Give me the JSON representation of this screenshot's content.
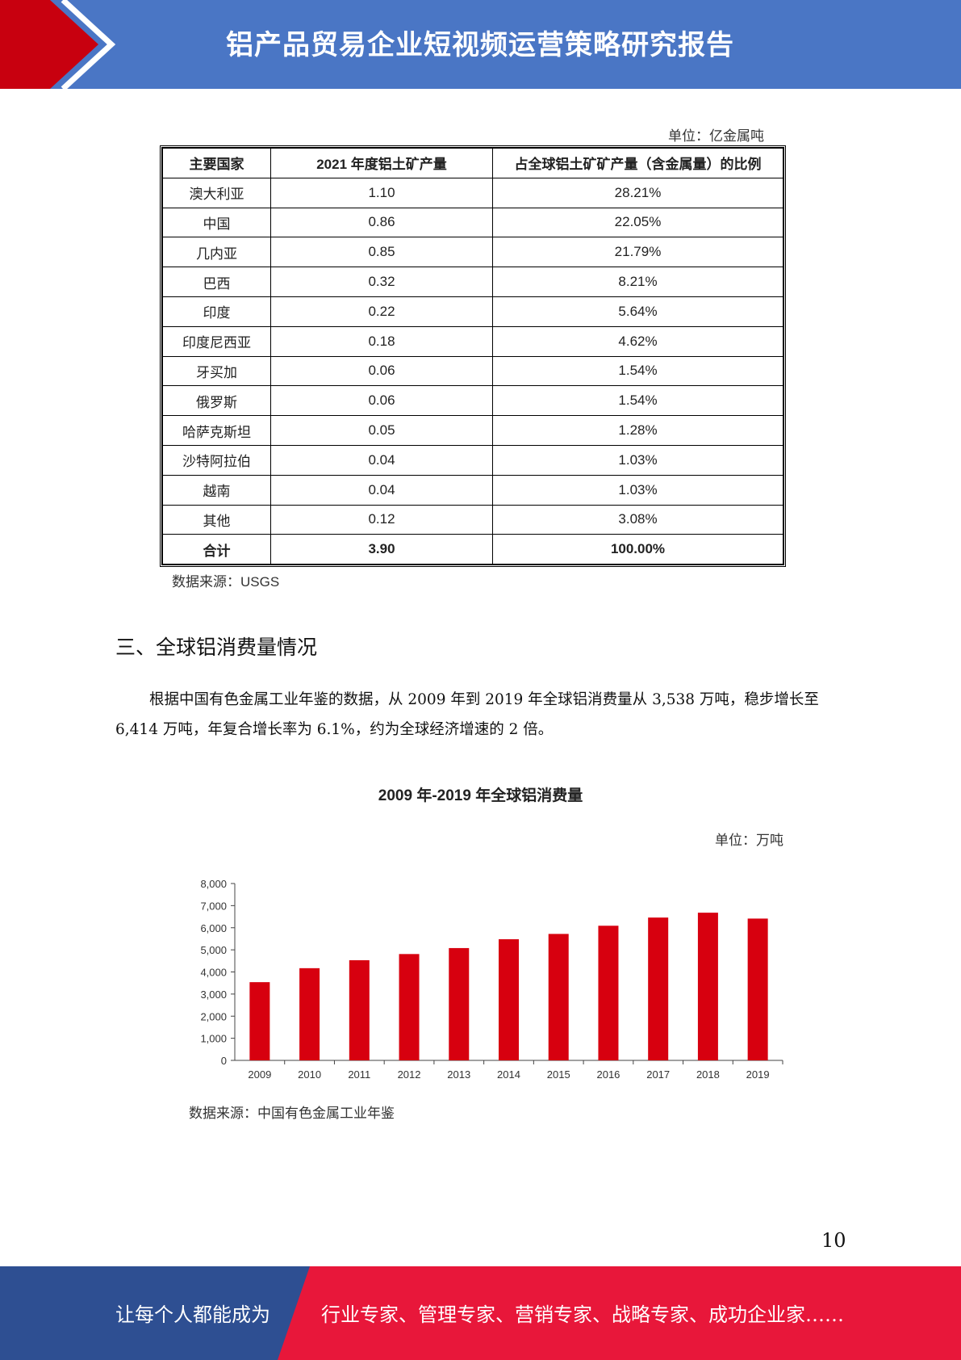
{
  "header": {
    "title": "铝产品贸易企业短视频运营策略研究报告"
  },
  "table": {
    "unit": "单位：亿金属吨",
    "headers": [
      "主要国家",
      "2021 年度铝土矿产量",
      "占全球铝土矿矿产量（含金属量）的比例"
    ],
    "rows": [
      [
        "澳大利亚",
        "1.10",
        "28.21%"
      ],
      [
        "中国",
        "0.86",
        "22.05%"
      ],
      [
        "几内亚",
        "0.85",
        "21.79%"
      ],
      [
        "巴西",
        "0.32",
        "8.21%"
      ],
      [
        "印度",
        "0.22",
        "5.64%"
      ],
      [
        "印度尼西亚",
        "0.18",
        "4.62%"
      ],
      [
        "牙买加",
        "0.06",
        "1.54%"
      ],
      [
        "俄罗斯",
        "0.06",
        "1.54%"
      ],
      [
        "哈萨克斯坦",
        "0.05",
        "1.28%"
      ],
      [
        "沙特阿拉伯",
        "0.04",
        "1.03%"
      ],
      [
        "越南",
        "0.04",
        "1.03%"
      ],
      [
        "其他",
        "0.12",
        "3.08%"
      ]
    ],
    "total": [
      "合计",
      "3.90",
      "100.00%"
    ],
    "source": "数据来源：USGS"
  },
  "section": {
    "title": "三、全球铝消费量情况",
    "paragraph": "根据中国有色金属工业年鉴的数据，从 2009 年到 2019 年全球铝消费量从 3,538 万吨，稳步增长至 6,414 万吨，年复合增长率为 6.1%，约为全球经济增速的 2 倍。"
  },
  "chart_data": {
    "type": "bar",
    "title": "2009 年-2019 年全球铝消费量",
    "unit": "单位：万吨",
    "categories": [
      "2009",
      "2010",
      "2011",
      "2012",
      "2013",
      "2014",
      "2015",
      "2016",
      "2017",
      "2018",
      "2019"
    ],
    "values": [
      3538,
      4170,
      4530,
      4810,
      5080,
      5480,
      5720,
      6090,
      6460,
      6680,
      6414
    ],
    "ylim": [
      0,
      8000
    ],
    "yticks": [
      "0",
      "1,000",
      "2,000",
      "3,000",
      "4,000",
      "5,000",
      "6,000",
      "7,000",
      "8,000"
    ],
    "xlabel": "",
    "ylabel": "",
    "bar_color": "#d7000f",
    "source": "数据来源：中国有色金属工业年鉴"
  },
  "page_number": "10",
  "footer": {
    "left": "让每个人都能成为",
    "right": "行业专家、管理专家、营销专家、战略专家、成功企业家……"
  },
  "colors": {
    "header_blue": "#4a76c5",
    "accent_red": "#c8000f",
    "footer_blue": "#2e4f92",
    "footer_red": "#e8173a"
  }
}
